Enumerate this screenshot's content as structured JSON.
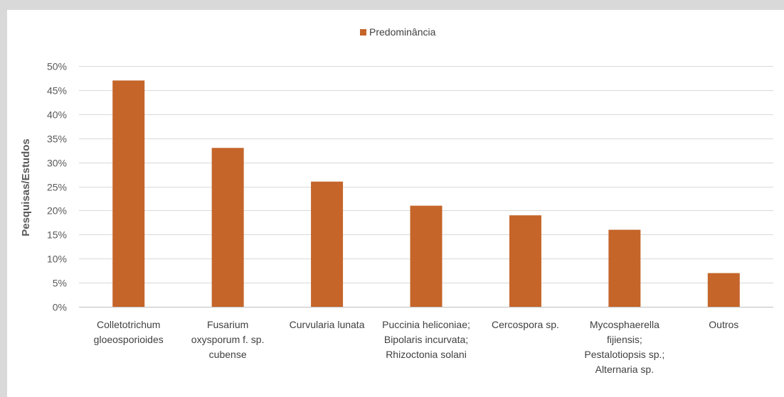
{
  "chart_data": {
    "type": "bar",
    "categories": [
      [
        "Colletotrichum",
        "gloeosporioides"
      ],
      [
        "Fusarium",
        "oxysporum f. sp.",
        "cubense"
      ],
      [
        "Curvularia lunata"
      ],
      [
        "Puccinia heliconiae;",
        "Bipolaris incurvata;",
        "Rhizoctonia solani"
      ],
      [
        "Cercospora sp."
      ],
      [
        "Mycosphaerella",
        "fijiensis;",
        "Pestalotiopsis sp.;",
        "Alternaria sp."
      ],
      [
        "Outros"
      ]
    ],
    "series": [
      {
        "name": "Predominância",
        "values": [
          47,
          33,
          26,
          21,
          19,
          16,
          7
        ],
        "color": "#c5652a"
      }
    ],
    "ylabel": "Pesquisas/Estudos",
    "ylim": [
      0,
      50
    ],
    "yticks": [
      "0%",
      "5%",
      "10%",
      "15%",
      "20%",
      "25%",
      "30%",
      "35%",
      "40%",
      "45%",
      "50%"
    ],
    "grid": true,
    "legend_position": "top-center"
  }
}
